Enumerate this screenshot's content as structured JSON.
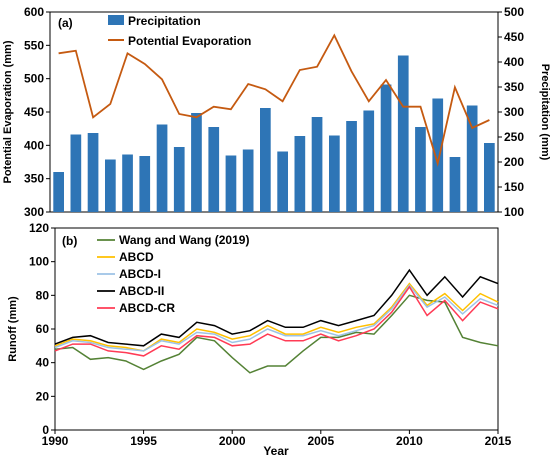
{
  "chart_data": [
    {
      "panel_label": "(a)",
      "type": "bar+line",
      "x": [
        1990,
        1991,
        1992,
        1993,
        1994,
        1995,
        1996,
        1997,
        1998,
        1999,
        2000,
        2001,
        2002,
        2003,
        2004,
        2005,
        2006,
        2007,
        2008,
        2009,
        2010,
        2011,
        2012,
        2013,
        2014,
        2015
      ],
      "series": [
        {
          "name": "Precipitation",
          "type": "bar",
          "axis": "right",
          "color": "#2e75b6",
          "values": [
            180,
            255,
            258,
            205,
            215,
            212,
            275,
            230,
            298,
            270,
            213,
            225,
            308,
            221,
            252,
            290,
            253,
            282,
            303,
            355,
            413,
            270,
            327,
            210,
            313,
            238
          ]
        },
        {
          "name": "Potential Evaporation",
          "type": "line",
          "axis": "left",
          "color": "#c55a11",
          "values": [
            538,
            542,
            442,
            462,
            538,
            522,
            499,
            447,
            442,
            458,
            454,
            492,
            484,
            466,
            513,
            518,
            565,
            511,
            466,
            498,
            458,
            458,
            373,
            487,
            426,
            438
          ]
        }
      ],
      "ylabel_left": "Potential Evaporation (mm)",
      "ylabel_right": "Precipitation (mm)",
      "ylim_left": [
        300,
        600
      ],
      "yticks_left": [
        "300",
        "350",
        "400",
        "450",
        "500",
        "550",
        "600"
      ],
      "ylim_right": [
        100,
        500
      ],
      "yticks_right": [
        "100",
        "150",
        "200",
        "250",
        "300",
        "350",
        "400",
        "450",
        "500"
      ],
      "legend_position": "top-left"
    },
    {
      "panel_label": "(b)",
      "type": "line",
      "x": [
        1990,
        1991,
        1992,
        1993,
        1994,
        1995,
        1996,
        1997,
        1998,
        1999,
        2000,
        2001,
        2002,
        2003,
        2004,
        2005,
        2006,
        2007,
        2008,
        2009,
        2010,
        2011,
        2012,
        2013,
        2014,
        2015
      ],
      "series": [
        {
          "name": "Wang and Wang (2019)",
          "color": "#548235",
          "values": [
            48,
            49,
            42,
            43,
            41,
            36,
            41,
            45,
            55,
            53,
            43,
            34,
            38,
            38,
            47,
            55,
            55,
            58,
            57,
            68,
            80,
            77,
            76,
            55,
            52,
            50
          ]
        },
        {
          "name": "ABCD",
          "color": "#ffc000",
          "values": [
            50,
            54,
            53,
            50,
            49,
            47,
            54,
            52,
            60,
            58,
            54,
            56,
            62,
            57,
            57,
            61,
            58,
            61,
            63,
            73,
            87,
            74,
            81,
            71,
            81,
            76
          ]
        },
        {
          "name": "ABCD-I",
          "color": "#9dc3e6",
          "values": [
            49,
            53,
            52,
            49,
            48,
            47,
            53,
            51,
            58,
            57,
            52,
            54,
            60,
            56,
            56,
            59,
            56,
            59,
            62,
            72,
            86,
            73,
            79,
            69,
            78,
            74
          ]
        },
        {
          "name": "ABCD-II",
          "color": "#000000",
          "values": [
            51,
            55,
            56,
            52,
            51,
            50,
            57,
            55,
            64,
            62,
            57,
            59,
            65,
            61,
            61,
            65,
            62,
            65,
            68,
            80,
            95,
            80,
            91,
            79,
            91,
            87
          ]
        },
        {
          "name": "ABCD-CR",
          "color": "#ff3b55",
          "values": [
            47,
            51,
            51,
            47,
            46,
            44,
            50,
            48,
            56,
            55,
            50,
            51,
            57,
            53,
            53,
            57,
            53,
            56,
            60,
            70,
            85,
            68,
            77,
            65,
            76,
            72
          ]
        }
      ],
      "xlabel": "Year",
      "ylabel": "Runoff (mm)",
      "xlim": [
        1990,
        2015
      ],
      "xticks": [
        "1990",
        "1995",
        "2000",
        "2005",
        "2010",
        "2015"
      ],
      "ylim": [
        0,
        120
      ],
      "yticks": [
        "0",
        "20",
        "40",
        "60",
        "80",
        "100",
        "120"
      ],
      "legend_position": "top-left"
    }
  ]
}
